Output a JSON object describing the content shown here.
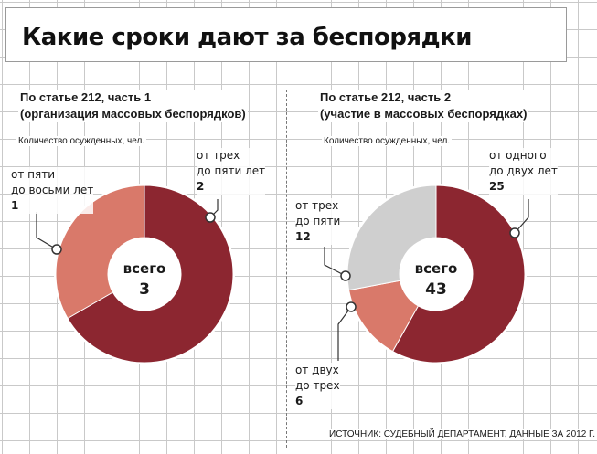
{
  "title": "Какие сроки дают за беспорядки",
  "source": "ИСТОЧНИК: СУДЕБНЫЙ ДЕПАРТАМЕНТ, ДАННЫЕ ЗА 2012 Г.",
  "colors": {
    "dark": "#8c2630",
    "salmon": "#d9796a",
    "gray": "#cfcfcf"
  },
  "chart_data": [
    {
      "type": "pie",
      "title": "По статье 212, часть 1",
      "subtitle": "(организация массовых беспорядков)",
      "ylabel": "Количество осужденных, чел.",
      "center_label": "всего",
      "total": "3",
      "slices": [
        {
          "label_line1": "от трех",
          "label_line2": "до пяти лет",
          "value": 2,
          "color": "#8c2630"
        },
        {
          "label_line1": "от пяти",
          "label_line2": "до восьми лет",
          "value": 1,
          "color": "#d9796a"
        }
      ]
    },
    {
      "type": "pie",
      "title": "По статье 212, часть 2",
      "subtitle": "(участие в массовых беспорядках)",
      "ylabel": "Количество осужденных, чел.",
      "center_label": "всего",
      "total": "43",
      "slices": [
        {
          "label_line1": "от одного",
          "label_line2": "до двух лет",
          "value": 25,
          "color": "#8c2630"
        },
        {
          "label_line1": "от двух",
          "label_line2": "до трех",
          "value": 6,
          "color": "#d9796a"
        },
        {
          "label_line1": "от трех",
          "label_line2": "до пяти",
          "value": 12,
          "color": "#cfcfcf"
        }
      ]
    }
  ]
}
